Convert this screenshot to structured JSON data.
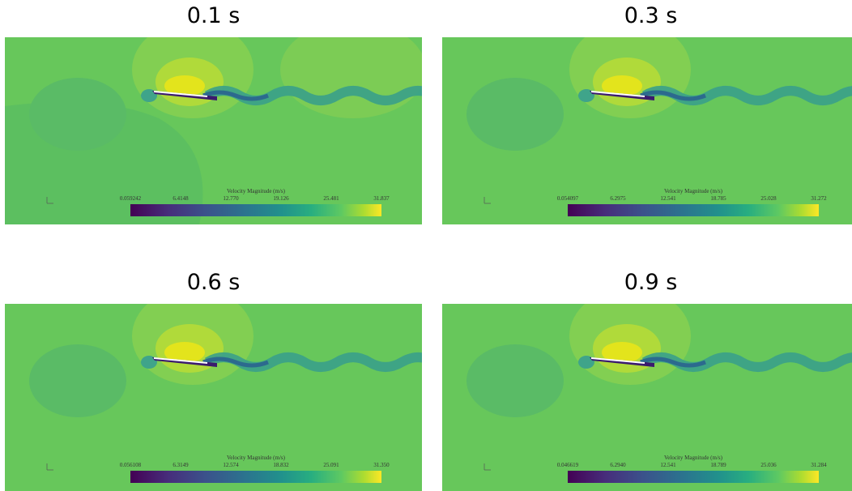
{
  "panels": [
    {
      "title": "0.1 s",
      "colorbar_title": "Velocity Magnitude (m/s)",
      "ticks": [
        "0.059242",
        "6.4148",
        "12.770",
        "19.126",
        "25.481",
        "31.837"
      ]
    },
    {
      "title": "0.3 s",
      "colorbar_title": "Velocity Magnitude (m/s)",
      "ticks": [
        "0.054097",
        "6.2975",
        "12.541",
        "18.785",
        "25.028",
        "31.272"
      ]
    },
    {
      "title": "0.6 s",
      "colorbar_title": "Velocity Magnitude (m/s)",
      "ticks": [
        "0.056108",
        "6.3149",
        "12.574",
        "18.832",
        "25.091",
        "31.350"
      ]
    },
    {
      "title": "0.9 s",
      "colorbar_title": "Velocity Magnitude (m/s)",
      "ticks": [
        "0.046619",
        "6.2940",
        "12.541",
        "18.789",
        "25.036",
        "31.284"
      ]
    }
  ]
}
